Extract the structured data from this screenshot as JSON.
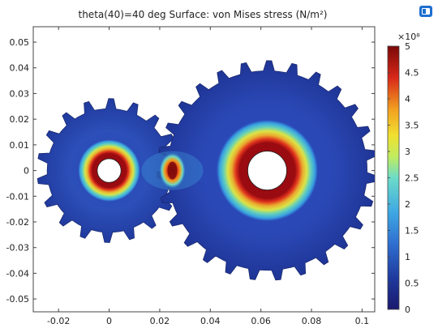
{
  "title_text": "theta(40)=40 deg   Surface: von Mises stress (N/m²)",
  "colorbar": {
    "multiplier": "×10⁸",
    "ticks": [
      "0",
      "0.5",
      "1",
      "1.5",
      "2",
      "2.5",
      "3",
      "3.5",
      "4",
      "4.5",
      "5"
    ]
  },
  "chart_data": {
    "type": "heatmap",
    "title": "theta(40)=40 deg   Surface: von Mises stress (N/m²)",
    "xlabel": "",
    "ylabel": "",
    "xlim": [
      -0.03,
      0.105
    ],
    "ylim": [
      -0.055,
      0.056
    ],
    "x_ticks": [
      "-0.02",
      "0",
      "0.02",
      "0.04",
      "0.06",
      "0.08",
      "0.1"
    ],
    "x_tick_values": [
      -0.02,
      0,
      0.02,
      0.04,
      0.06,
      0.08,
      0.1
    ],
    "y_ticks": [
      "0.05",
      "0.04",
      "0.03",
      "0.02",
      "0.01",
      "0",
      "-0.01",
      "-0.02",
      "-0.03",
      "-0.04",
      "-0.05"
    ],
    "y_tick_values": [
      0.05,
      0.04,
      0.03,
      0.02,
      0.01,
      0,
      -0.01,
      -0.02,
      -0.03,
      -0.04,
      -0.05
    ],
    "color_scale": {
      "min": 0,
      "max": 500000000.0,
      "unit": "N/m²",
      "colors": [
        "#1a2080",
        "#2f5fc4",
        "#3fa0e0",
        "#7ee0a8",
        "#e8e83a",
        "#f0a020",
        "#d83018",
        "#8c0a0a"
      ]
    },
    "gears": [
      {
        "name": "small",
        "center": [
          0,
          0
        ],
        "root_radius": 0.0245,
        "tip_radius": 0.0285,
        "teeth": 18,
        "hole_radius": 0.0047
      },
      {
        "name": "large",
        "center": [
          0.0625,
          0
        ],
        "root_radius": 0.0395,
        "tip_radius": 0.0435,
        "teeth": 27,
        "hole_radius": 0.0077
      }
    ]
  }
}
